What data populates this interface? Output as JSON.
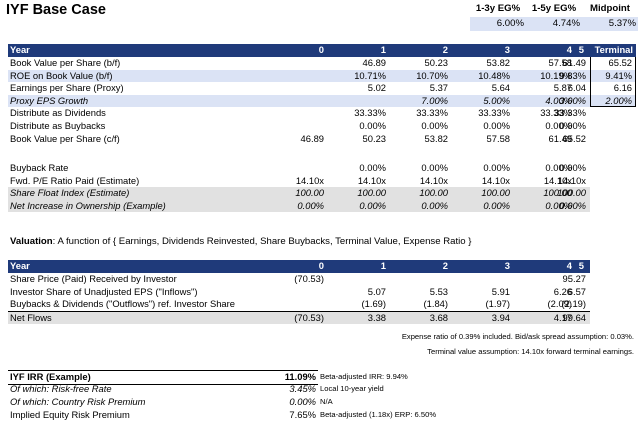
{
  "title": "IYF Base Case",
  "eg": {
    "headers": [
      "1-3y EG%",
      "1-5y EG%",
      "Midpoint"
    ],
    "values": [
      "6.00%",
      "4.74%",
      "5.37%"
    ]
  },
  "table1": {
    "header": {
      "label": "Year",
      "cols": [
        "0",
        "1",
        "2",
        "3",
        "4",
        "5"
      ],
      "terminal": "Terminal"
    },
    "rows": [
      {
        "label": "Book Value per Share (b/f)",
        "cells": [
          "",
          "46.89",
          "50.23",
          "53.82",
          "57.58",
          "61.49"
        ],
        "terminal": "65.52"
      },
      {
        "label": "ROE on Book Value (b/f)",
        "cells": [
          "",
          "10.71%",
          "10.70%",
          "10.48%",
          "10.19%",
          "9.83%"
        ],
        "terminal": "9.41%"
      },
      {
        "label": "Earnings per Share (Proxy)",
        "cells": [
          "",
          "5.02",
          "5.37",
          "5.64",
          "5.87",
          "6.04"
        ],
        "terminal": "6.16"
      },
      {
        "label": "Proxy EPS Growth",
        "cells": [
          "",
          "",
          "7.00%",
          "5.00%",
          "4.00%",
          "3.00%"
        ],
        "terminal": "2.00%"
      },
      {
        "label": "Distribute as Dividends",
        "cells": [
          "",
          "33.33%",
          "33.33%",
          "33.33%",
          "33.33%",
          "33.33%"
        ],
        "terminal": ""
      },
      {
        "label": "Distribute as Buybacks",
        "cells": [
          "",
          "0.00%",
          "0.00%",
          "0.00%",
          "0.00%",
          "0.00%"
        ],
        "terminal": ""
      },
      {
        "label": "Book Value per Share (c/f)",
        "cells": [
          "46.89",
          "50.23",
          "53.82",
          "57.58",
          "61.49",
          "65.52"
        ],
        "terminal": ""
      }
    ],
    "rows2": [
      {
        "label": "Buyback Rate",
        "cells": [
          "",
          "0.00%",
          "0.00%",
          "0.00%",
          "0.00%",
          "0.00%"
        ]
      },
      {
        "label": "Fwd. P/E Ratio Paid (Estimate)",
        "cells": [
          "14.10x",
          "14.10x",
          "14.10x",
          "14.10x",
          "14.10x",
          "14.10x"
        ]
      },
      {
        "label": "Share Float Index (Estimate)",
        "cells": [
          "100.00",
          "100.00",
          "100.00",
          "100.00",
          "100.00",
          "100.00"
        ]
      },
      {
        "label": "Net Increase in Ownership (Example)",
        "cells": [
          "0.00%",
          "0.00%",
          "0.00%",
          "0.00%",
          "0.00%",
          "0.00%"
        ]
      }
    ]
  },
  "valuation": {
    "bold": "Valuation",
    "text": ": A function of { Earnings, Dividends Reinvested, Share Buybacks, Terminal Value, Expense Ratio }"
  },
  "table2": {
    "header": {
      "label": "Year",
      "cols": [
        "0",
        "1",
        "2",
        "3",
        "4",
        "5"
      ]
    },
    "rows": [
      {
        "label": "Share Price (Paid) Received by Investor",
        "cells": [
          "(70.53)",
          "",
          "",
          "",
          "",
          "95.27"
        ]
      },
      {
        "label": "Investor Share of Unadjusted EPS (\"Inflows\")",
        "cells": [
          "",
          "5.07",
          "5.53",
          "5.91",
          "6.26",
          "6.57"
        ]
      },
      {
        "label": "Buybacks & Dividends (\"Outflows\") ref. Investor Share",
        "cells": [
          "",
          "(1.69)",
          "(1.84)",
          "(1.97)",
          "(2.09)",
          "(2.19)"
        ]
      },
      {
        "label": "Net Flows",
        "cells": [
          "(70.53)",
          "3.38",
          "3.68",
          "3.94",
          "4.17",
          "99.64"
        ]
      }
    ]
  },
  "notes": [
    "Expense ratio of 0.39% included. Bid/ask spread assumption: 0.03%.",
    "Terminal value assumption: 14.10x forward terminal earnings."
  ],
  "irr": [
    {
      "label": "IYF IRR (Example)",
      "value": "11.09%",
      "note": "Beta-adjusted IRR: 9.94%"
    },
    {
      "label": "Of which: Risk-free Rate",
      "value": "3.45%",
      "note": "Local 10-year yield"
    },
    {
      "label": "Of which: Country Risk Premium",
      "value": "0.00%",
      "note": "N/A"
    },
    {
      "label": "Implied Equity Risk Premium",
      "value": "7.65%",
      "note": "Beta-adjusted (1.18x) ERP: 6.50%"
    }
  ]
}
